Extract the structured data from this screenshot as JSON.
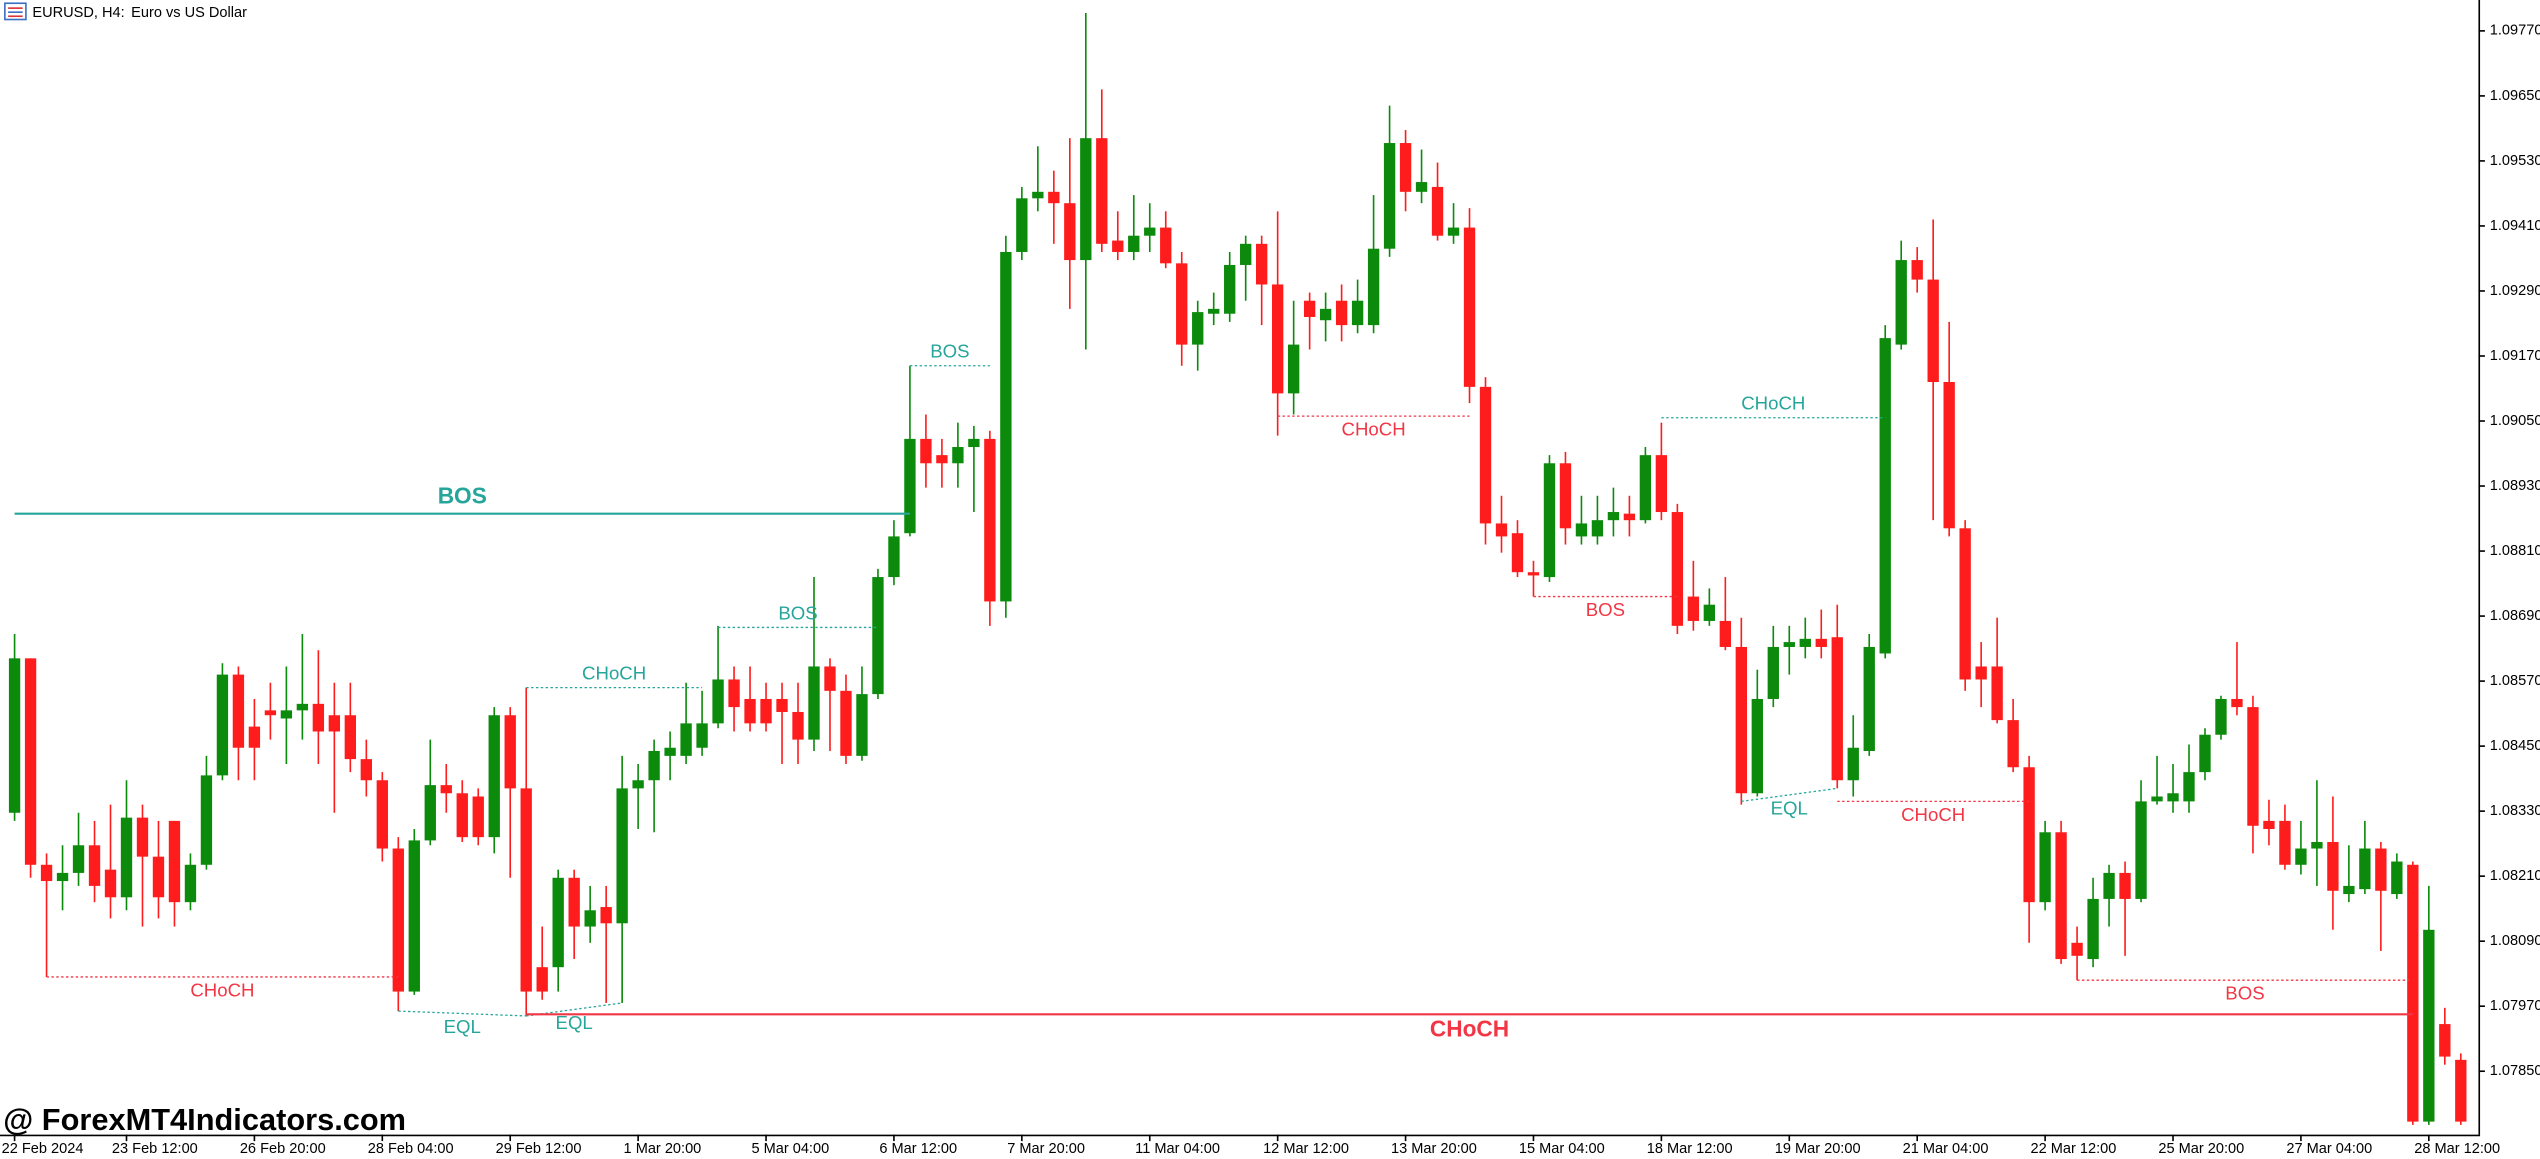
{
  "chart_data": {
    "type": "candlestick",
    "symbol": "EURUSD, H4:",
    "description": "Euro vs US Dollar",
    "watermark": "@ ForexMT4Indicators.com",
    "colors": {
      "up": "#0c8a0c",
      "down": "#ff1c1c"
    },
    "ylim": [
      1.07736,
      1.09827
    ],
    "yticks": [
      {
        "value": 1.0785,
        "label": "1.07850"
      },
      {
        "value": 1.0797,
        "label": "1.07970"
      },
      {
        "value": 1.0809,
        "label": "1.08090"
      },
      {
        "value": 1.0821,
        "label": "1.08210"
      },
      {
        "value": 1.0833,
        "label": "1.08330"
      },
      {
        "value": 1.0845,
        "label": "1.08450"
      },
      {
        "value": 1.0857,
        "label": "1.08570"
      },
      {
        "value": 1.0869,
        "label": "1.08690"
      },
      {
        "value": 1.0881,
        "label": "1.08810"
      },
      {
        "value": 1.0893,
        "label": "1.08930"
      },
      {
        "value": 1.0905,
        "label": "1.09050"
      },
      {
        "value": 1.0917,
        "label": "1.09170"
      },
      {
        "value": 1.0929,
        "label": "1.09290"
      },
      {
        "value": 1.0941,
        "label": "1.09410"
      },
      {
        "value": 1.0953,
        "label": "1.09530"
      },
      {
        "value": 1.0965,
        "label": "1.09650"
      },
      {
        "value": 1.0977,
        "label": "1.09770"
      }
    ],
    "categories": [
      "22 Feb 2024",
      null,
      null,
      null,
      null,
      null,
      null,
      "23 Feb 12:00",
      null,
      null,
      null,
      null,
      null,
      null,
      null,
      "26 Feb 20:00",
      null,
      null,
      null,
      null,
      null,
      null,
      null,
      "28 Feb 04:00",
      null,
      null,
      null,
      null,
      null,
      null,
      null,
      "29 Feb 12:00",
      null,
      null,
      null,
      null,
      null,
      null,
      null,
      "1 Mar 20:00",
      null,
      null,
      null,
      null,
      null,
      null,
      null,
      "5 Mar 04:00",
      null,
      null,
      null,
      null,
      null,
      null,
      null,
      "6 Mar 12:00",
      null,
      null,
      null,
      null,
      null,
      null,
      null,
      "7 Mar 20:00",
      null,
      null,
      null,
      null,
      null,
      null,
      null,
      "11 Mar 04:00",
      null,
      null,
      null,
      null,
      null,
      null,
      null,
      "12 Mar 12:00",
      null,
      null,
      null,
      null,
      null,
      null,
      null,
      "13 Mar 20:00",
      null,
      null,
      null,
      null,
      null,
      null,
      null,
      "15 Mar 04:00",
      null,
      null,
      null,
      null,
      null,
      null,
      null,
      "18 Mar 12:00",
      null,
      null,
      null,
      null,
      null,
      null,
      null,
      "19 Mar 20:00",
      null,
      null,
      null,
      null,
      null,
      null,
      null,
      "21 Mar 04:00",
      null,
      null,
      null,
      null,
      null,
      null,
      null,
      "22 Mar 12:00",
      null,
      null,
      null,
      null,
      null,
      null,
      null,
      "25 Mar 20:00",
      null,
      null,
      null,
      null,
      null,
      null,
      null,
      "27 Mar 04:00",
      null,
      null,
      null,
      null,
      null,
      null,
      null,
      "28 Mar 12:00",
      null,
      null
    ],
    "open": [
      1.08327,
      1.08612,
      1.08231,
      1.08201,
      1.08216,
      1.08267,
      1.08222,
      1.08171,
      1.08318,
      1.08246,
      1.08312,
      1.08162,
      1.08231,
      1.08396,
      1.08582,
      1.08486,
      1.08516,
      1.08501,
      1.08516,
      1.08528,
      1.08507,
      1.08507,
      1.08426,
      1.08387,
      1.08261,
      1.07997,
      1.08276,
      1.08378,
      1.08363,
      1.08357,
      1.08282,
      1.08507,
      1.08372,
      1.08042,
      1.08042,
      1.08207,
      1.08117,
      1.08153,
      1.08123,
      1.08372,
      1.08387,
      1.08432,
      1.08432,
      1.08447,
      1.08492,
      1.08573,
      1.08537,
      1.08537,
      1.08537,
      1.08513,
      1.08462,
      1.08597,
      1.08552,
      1.08432,
      1.08546,
      1.08762,
      1.08843,
      1.09017,
      1.08987,
      1.08972,
      1.09002,
      1.09017,
      1.08717,
      1.09362,
      1.09461,
      1.09473,
      1.09452,
      1.09347,
      1.09572,
      1.09383,
      1.09362,
      1.09392,
      1.09407,
      1.09341,
      1.09191,
      1.09248,
      1.09248,
      1.09338,
      1.09377,
      1.09302,
      1.09101,
      1.09272,
      1.09236,
      1.09272,
      1.09227,
      1.09227,
      1.09368,
      1.09563,
      1.09473,
      1.09482,
      1.09392,
      1.09407,
      1.09113,
      1.08861,
      1.08843,
      1.08771,
      1.08762,
      1.08972,
      1.08837,
      1.08837,
      1.08867,
      1.08879,
      1.08867,
      1.08987,
      1.08882,
      1.08726,
      1.08681,
      1.08681,
      1.08633,
      1.08363,
      1.08537,
      1.08633,
      1.08633,
      1.08648,
      1.08651,
      1.08387,
      1.08441,
      1.08621,
      1.09191,
      1.09347,
      1.09311,
      1.09122,
      1.08852,
      1.08597,
      1.08597,
      1.08498,
      1.08411,
      1.08162,
      1.08291,
      1.08087,
      1.08057,
      1.08168,
      1.08216,
      1.08168,
      1.08348,
      1.08348,
      1.08348,
      1.08402,
      1.08471,
      1.08537,
      1.08522,
      1.08312,
      1.08312,
      1.08231,
      1.08261,
      1.08273,
      1.08177,
      1.08186,
      1.08261,
      1.08177,
      1.08231,
      1.07757,
      1.07937,
      1.07871
    ],
    "high": [
      1.08657,
      1.08612,
      1.08252,
      1.08267,
      1.08327,
      1.08312,
      1.08342,
      1.08387,
      1.08342,
      1.08312,
      1.08312,
      1.08252,
      1.08432,
      1.08603,
      1.08597,
      1.08537,
      1.08567,
      1.08597,
      1.08657,
      1.08627,
      1.08567,
      1.08567,
      1.08462,
      1.08402,
      1.08282,
      1.08297,
      1.08462,
      1.08417,
      1.08387,
      1.08372,
      1.08522,
      1.08522,
      1.08558,
      1.08117,
      1.08222,
      1.08222,
      1.08192,
      1.08192,
      1.08432,
      1.08417,
      1.08462,
      1.08477,
      1.08567,
      1.08552,
      1.08672,
      1.08597,
      1.08597,
      1.08567,
      1.08567,
      1.08567,
      1.08762,
      1.08612,
      1.08582,
      1.08597,
      1.08777,
      1.08867,
      1.09152,
      1.09062,
      1.09017,
      1.09047,
      1.09041,
      1.09032,
      1.09392,
      1.09482,
      1.09557,
      1.09512,
      1.09572,
      1.09803,
      1.09662,
      1.09437,
      1.09467,
      1.09452,
      1.09437,
      1.09362,
      1.09272,
      1.09287,
      1.09362,
      1.09392,
      1.09392,
      1.09437,
      1.09272,
      1.09287,
      1.09287,
      1.09302,
      1.09311,
      1.09467,
      1.09632,
      1.09587,
      1.09551,
      1.09527,
      1.09452,
      1.09443,
      1.09131,
      1.08912,
      1.08867,
      1.08792,
      1.08987,
      1.08993,
      1.08912,
      1.08912,
      1.08927,
      1.08912,
      1.09002,
      1.09047,
      1.08897,
      1.08792,
      1.08741,
      1.08762,
      1.08687,
      1.08591,
      1.08672,
      1.08672,
      1.08687,
      1.08702,
      1.08711,
      1.08507,
      1.08657,
      1.09227,
      1.09383,
      1.09371,
      1.09422,
      1.09233,
      1.08867,
      1.08642,
      1.08687,
      1.08537,
      1.08432,
      1.08312,
      1.08312,
      1.08117,
      1.08207,
      1.08231,
      1.08237,
      1.08387,
      1.08432,
      1.08417,
      1.08453,
      1.08483,
      1.08543,
      1.08642,
      1.08543,
      1.08351,
      1.08342,
      1.08312,
      1.08387,
      1.08357,
      1.08267,
      1.08312,
      1.08273,
      1.08252,
      1.08237,
      1.08192,
      1.07967,
      1.07883
    ],
    "low": [
      1.08312,
      1.08207,
      1.08024,
      1.08147,
      1.08192,
      1.08162,
      1.08132,
      1.08147,
      1.08117,
      1.08132,
      1.08117,
      1.08147,
      1.08222,
      1.08387,
      1.08387,
      1.08387,
      1.08462,
      1.08417,
      1.08462,
      1.08417,
      1.08327,
      1.08402,
      1.08357,
      1.08237,
      1.07961,
      1.07991,
      1.08267,
      1.08327,
      1.08273,
      1.08267,
      1.08252,
      1.08207,
      1.07952,
      1.07982,
      1.07997,
      1.08057,
      1.08087,
      1.07976,
      1.07976,
      1.08297,
      1.08291,
      1.08387,
      1.08417,
      1.08432,
      1.08483,
      1.08477,
      1.08477,
      1.08477,
      1.08417,
      1.08417,
      1.08441,
      1.08441,
      1.08417,
      1.08423,
      1.08537,
      1.08747,
      1.08837,
      1.08927,
      1.08927,
      1.08927,
      1.08882,
      1.08672,
      1.08687,
      1.09347,
      1.09437,
      1.09377,
      1.09257,
      1.09182,
      1.09362,
      1.09347,
      1.09347,
      1.09362,
      1.09332,
      1.09152,
      1.09143,
      1.09227,
      1.09233,
      1.09272,
      1.09227,
      1.09023,
      1.09062,
      1.09182,
      1.09197,
      1.09197,
      1.09212,
      1.09212,
      1.09353,
      1.09437,
      1.09452,
      1.09383,
      1.09377,
      1.09083,
      1.08822,
      1.08807,
      1.08762,
      1.08726,
      1.08753,
      1.08822,
      1.08822,
      1.08822,
      1.08837,
      1.08837,
      1.08861,
      1.08867,
      1.08657,
      1.08663,
      1.08672,
      1.08627,
      1.08342,
      1.08357,
      1.08522,
      1.08582,
      1.08612,
      1.08612,
      1.08372,
      1.08357,
      1.08432,
      1.08612,
      1.09182,
      1.09287,
      1.08867,
      1.08837,
      1.08552,
      1.08522,
      1.08492,
      1.08402,
      1.08087,
      1.08147,
      1.08048,
      1.08018,
      1.08042,
      1.08117,
      1.08063,
      1.08162,
      1.08342,
      1.08327,
      1.08327,
      1.08387,
      1.08462,
      1.08507,
      1.08252,
      1.08267,
      1.08222,
      1.08213,
      1.08192,
      1.08111,
      1.08162,
      1.08177,
      1.08072,
      1.08168,
      1.07751,
      1.07751,
      1.07862,
      1.07751
    ],
    "close": [
      1.08612,
      1.08231,
      1.08201,
      1.08216,
      1.08267,
      1.08192,
      1.08171,
      1.08318,
      1.08246,
      1.08171,
      1.08162,
      1.08231,
      1.08396,
      1.08582,
      1.08447,
      1.08447,
      1.08507,
      1.08516,
      1.08528,
      1.08477,
      1.08477,
      1.08426,
      1.08387,
      1.08261,
      1.07997,
      1.08276,
      1.08378,
      1.08363,
      1.08282,
      1.08282,
      1.08507,
      1.08372,
      1.07997,
      1.07997,
      1.08207,
      1.08117,
      1.08147,
      1.08123,
      1.08372,
      1.08387,
      1.08441,
      1.08447,
      1.08492,
      1.08492,
      1.08573,
      1.08522,
      1.08492,
      1.08492,
      1.08513,
      1.08462,
      1.08597,
      1.08552,
      1.08432,
      1.08546,
      1.08762,
      1.08837,
      1.09017,
      1.08972,
      1.08972,
      1.09002,
      1.09017,
      1.08717,
      1.09362,
      1.09461,
      1.09473,
      1.09452,
      1.09347,
      1.09572,
      1.09377,
      1.09362,
      1.09392,
      1.09407,
      1.09341,
      1.09191,
      1.09251,
      1.09257,
      1.09338,
      1.09377,
      1.09302,
      1.09101,
      1.09191,
      1.09242,
      1.09257,
      1.09227,
      1.09272,
      1.09368,
      1.09563,
      1.09473,
      1.09491,
      1.09392,
      1.09407,
      1.09113,
      1.08861,
      1.08837,
      1.08771,
      1.08765,
      1.08972,
      1.08852,
      1.08861,
      1.08867,
      1.08882,
      1.08867,
      1.08987,
      1.08882,
      1.08672,
      1.08681,
      1.08711,
      1.08633,
      1.08363,
      1.08537,
      1.08633,
      1.08642,
      1.08648,
      1.08633,
      1.08387,
      1.08447,
      1.08633,
      1.09203,
      1.09347,
      1.09311,
      1.09122,
      1.08852,
      1.08573,
      1.08573,
      1.08498,
      1.08411,
      1.08162,
      1.08291,
      1.08057,
      1.08063,
      1.08168,
      1.08216,
      1.08168,
      1.08348,
      1.08357,
      1.08363,
      1.08402,
      1.08471,
      1.08537,
      1.08522,
      1.08303,
      1.08297,
      1.08231,
      1.08261,
      1.08273,
      1.08183,
      1.08192,
      1.08261,
      1.08183,
      1.08237,
      1.07757,
      1.08111,
      1.07877,
      1.07757
    ],
    "annotations": [
      {
        "label": "BOS",
        "start": 0,
        "end": 56,
        "level": 1.08879,
        "color": "#26a69a",
        "bold": true
      },
      {
        "label": "CHoCH",
        "start": 2,
        "end": 24,
        "level": 1.08024,
        "color": "#f23645"
      },
      {
        "label": "EQL",
        "start": 24,
        "end": 32,
        "level": 1.07961,
        "level_end": 1.07952,
        "color": "#26a69a"
      },
      {
        "label": "EQL",
        "start": 32,
        "end": 38,
        "level": 1.07952,
        "level_end": 1.07976,
        "color": "#26a69a"
      },
      {
        "label": "CHoCH",
        "start": 32,
        "end": 150,
        "level": 1.07955,
        "color": "#f23645",
        "bold": true
      },
      {
        "label": "CHoCH",
        "start": 32,
        "end": 43,
        "level": 1.08558,
        "color": "#26a69a"
      },
      {
        "label": "BOS",
        "start": 44,
        "end": 54,
        "level": 1.08669,
        "color": "#26a69a"
      },
      {
        "label": "BOS",
        "start": 56,
        "end": 61,
        "level": 1.09152,
        "color": "#26a69a"
      },
      {
        "label": "CHoCH",
        "start": 79,
        "end": 91,
        "level": 1.09059,
        "color": "#f23645"
      },
      {
        "label": "BOS",
        "start": 95,
        "end": 104,
        "level": 1.08726,
        "color": "#f23645"
      },
      {
        "label": "CHoCH",
        "start": 103,
        "end": 117,
        "level": 1.09056,
        "color": "#26a69a"
      },
      {
        "label": "EQL",
        "start": 108,
        "end": 114,
        "level": 1.08348,
        "level_end": 1.08372,
        "color": "#26a69a"
      },
      {
        "label": "CHoCH",
        "start": 114,
        "end": 126,
        "level": 1.08348,
        "color": "#f23645"
      },
      {
        "label": "BOS",
        "start": 129,
        "end": 150,
        "level": 1.08018,
        "color": "#f23645"
      }
    ]
  }
}
